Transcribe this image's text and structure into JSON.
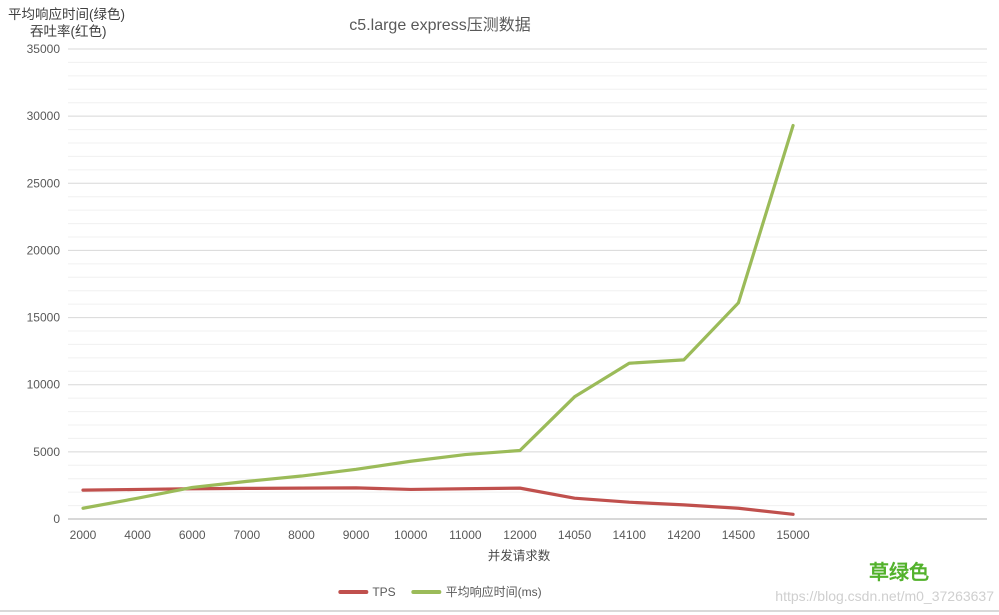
{
  "header": {
    "axis_note_line1": "平均响应时间(绿色)",
    "axis_note_line2": "吞吐率(红色)",
    "title": "c5.large express压测数据"
  },
  "chart_data": {
    "type": "line",
    "title": "c5.large express压测数据",
    "xlabel": "并发请求数",
    "ylabel": "",
    "categories": [
      "2000",
      "4000",
      "6000",
      "7000",
      "8000",
      "9000",
      "10000",
      "11000",
      "12000",
      "14050",
      "14100",
      "14200",
      "14500",
      "15000"
    ],
    "series": [
      {
        "name": "TPS",
        "color": "#c0504d",
        "values": [
          2150,
          2200,
          2250,
          2280,
          2300,
          2320,
          2200,
          2250,
          2300,
          1550,
          1250,
          1050,
          800,
          350
        ]
      },
      {
        "name": "平均响应时间(ms)",
        "color": "#9bbb59",
        "values": [
          800,
          1550,
          2350,
          2800,
          3200,
          3700,
          4300,
          4800,
          5100,
          9100,
          11600,
          11850,
          16100,
          29300
        ]
      }
    ],
    "ylim": [
      0,
      35000
    ],
    "y_major_ticks": [
      0,
      5000,
      10000,
      15000,
      20000,
      25000,
      30000,
      35000
    ],
    "y_minor_step": 1000,
    "grid": true,
    "legend_position": "bottom"
  },
  "legend": {
    "tps_label": "TPS",
    "avg_label": "平均响应时间(ms)"
  },
  "annotations": {
    "green_label": "草绿色",
    "green_label_color": "#53b22c",
    "watermark": "https://blog.csdn.net/m0_37263637"
  },
  "colors": {
    "major_grid": "#d8d8d8",
    "minor_grid": "#f0f0f0",
    "axis_line": "#c0c0c0",
    "tick_text": "#595959"
  }
}
